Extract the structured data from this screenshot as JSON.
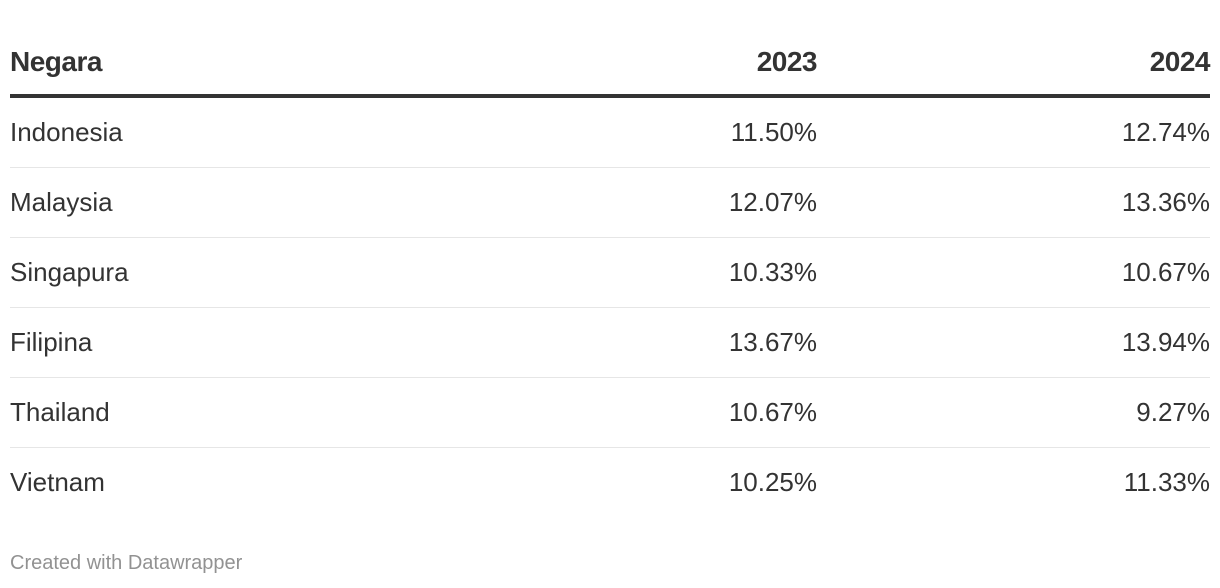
{
  "chart_data": {
    "type": "table",
    "columns": [
      "Negara",
      "2023",
      "2024"
    ],
    "rows": [
      {
        "country": "Indonesia",
        "v2023": "11.50%",
        "v2024": "12.74%"
      },
      {
        "country": "Malaysia",
        "v2023": "12.07%",
        "v2024": "13.36%"
      },
      {
        "country": "Singapura",
        "v2023": "10.33%",
        "v2024": "10.67%"
      },
      {
        "country": "Filipina",
        "v2023": "13.67%",
        "v2024": "13.94%"
      },
      {
        "country": "Thailand",
        "v2023": "10.67%",
        "v2024": "9.27%"
      },
      {
        "country": "Vietnam",
        "v2023": "10.25%",
        "v2024": "11.33%"
      }
    ]
  },
  "footer": {
    "credit": "Created with Datawrapper"
  },
  "colors": {
    "text": "#333333",
    "header_rule": "#333333",
    "row_rule": "#e6e6e6",
    "footer_text": "#929292"
  }
}
